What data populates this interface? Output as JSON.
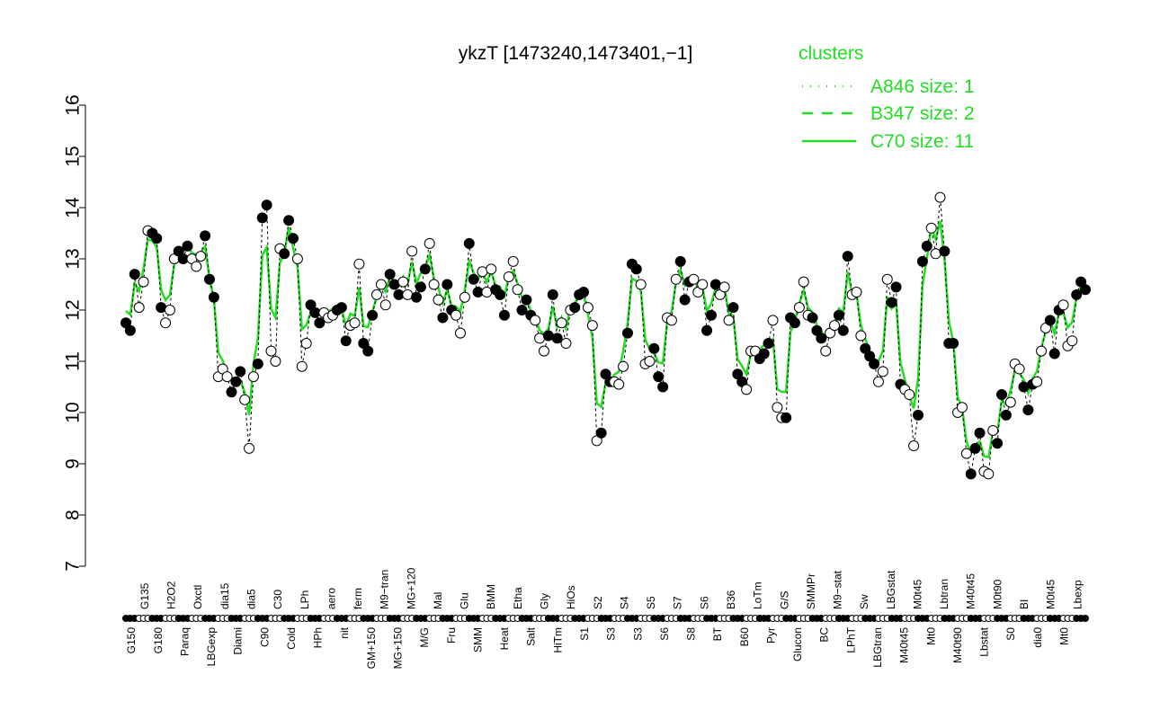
{
  "chart_data": {
    "type": "line",
    "title": "ykzT [1473240,1473401,−1]",
    "xlabel": "",
    "ylabel": "",
    "ylim": [
      7,
      16
    ],
    "yticks": [
      "7",
      "8",
      "9",
      "10",
      "11",
      "12",
      "13",
      "14",
      "15",
      "16"
    ],
    "grid": false,
    "legend": {
      "title": "clusters",
      "placement": "top-right",
      "entries": [
        {
          "label": "A846 size: 1",
          "style": "dotted"
        },
        {
          "label": "B347 size: 2",
          "style": "dashed"
        },
        {
          "label": "C70 size: 11",
          "style": "solid"
        }
      ]
    },
    "colors": {
      "cluster": "#22dd22",
      "points": "#000000"
    },
    "xtick_labels_bottom": [
      "G150",
      "G180",
      "Paraq",
      "LBGexp",
      "Diami",
      "C90",
      "Cold",
      "HPh",
      "nit",
      "GM+150",
      "MG+150",
      "M/G",
      "Fru",
      "SMM",
      "Heat",
      "Salt",
      "HiTm",
      "S1",
      "S3",
      "S3",
      "S6",
      "S8",
      "BT",
      "B60",
      "Pyr",
      "Glucon",
      "BC",
      "LPhT",
      "LBGtran",
      "M40t45",
      "Mt0",
      "M40t90",
      "Lbstat",
      "S0",
      "dia0",
      "Mt0"
    ],
    "xtick_labels_top": [
      "G135",
      "H2O2",
      "Oxctl",
      "dia15",
      "dia5",
      "C30",
      "LPh",
      "aero",
      "ferm",
      "M9−tran",
      "MG+120",
      "Mal",
      "Glu",
      "BMM",
      "Etha",
      "Gly",
      "HiOs",
      "S2",
      "S4",
      "S5",
      "S7",
      "S6",
      "B36",
      "LoTm",
      "G/S",
      "SMMPr",
      "M9−stat",
      "Sw",
      "LBGstat",
      "M0t45",
      "Lbtran",
      "M40t45",
      "M0t90",
      "BI",
      "M0t45",
      "Lbexp"
    ],
    "values": [
      11.75,
      11.6,
      12.7,
      12.05,
      12.55,
      13.55,
      13.5,
      13.4,
      12.05,
      11.75,
      12.0,
      13.0,
      13.15,
      13.0,
      13.25,
      13.0,
      12.85,
      13.05,
      13.45,
      12.6,
      12.25,
      10.7,
      10.85,
      10.7,
      10.4,
      10.6,
      10.8,
      10.25,
      9.3,
      10.7,
      10.95,
      13.8,
      14.05,
      11.2,
      11.0,
      13.2,
      13.1,
      13.75,
      13.4,
      13.0,
      10.9,
      11.35,
      12.1,
      11.95,
      11.75,
      11.95,
      11.85,
      11.9,
      12.0,
      12.05,
      11.4,
      11.7,
      11.75,
      12.9,
      11.35,
      11.2,
      11.9,
      12.3,
      12.5,
      12.1,
      12.7,
      12.5,
      12.3,
      12.55,
      12.3,
      13.15,
      12.25,
      12.45,
      12.8,
      13.3,
      12.5,
      12.2,
      11.85,
      12.5,
      12.0,
      11.9,
      11.55,
      12.25,
      13.3,
      12.6,
      12.35,
      12.75,
      12.35,
      12.8,
      12.4,
      12.3,
      11.9,
      12.65,
      12.95,
      12.4,
      12.0,
      12.2,
      11.9,
      11.8,
      11.45,
      11.2,
      11.5,
      12.3,
      11.45,
      11.75,
      11.35,
      12.0,
      12.05,
      12.3,
      12.35,
      12.05,
      11.7,
      9.45,
      9.6,
      10.75,
      10.6,
      10.6,
      10.55,
      10.9,
      11.55,
      12.9,
      12.8,
      12.5,
      10.95,
      11.0,
      11.25,
      10.7,
      10.5,
      11.85,
      11.8,
      12.6,
      12.95,
      12.2,
      12.55,
      12.6,
      12.35,
      12.5,
      11.6,
      11.9,
      12.5,
      12.3,
      12.45,
      11.8,
      12.05,
      10.75,
      10.6,
      10.45,
      11.2,
      11.2,
      11.05,
      11.15,
      11.35,
      11.8,
      10.1,
      9.9,
      9.9,
      11.85,
      11.75,
      12.05,
      12.55,
      11.9,
      11.85,
      11.6,
      11.45,
      11.2,
      11.55,
      11.7,
      11.9,
      11.6,
      13.05,
      12.3,
      12.35,
      11.5,
      11.25,
      11.1,
      10.95,
      10.6,
      10.8,
      12.6,
      12.15,
      12.45,
      10.55,
      10.45,
      10.35,
      9.35,
      9.95,
      12.95,
      13.25,
      13.6,
      13.1,
      14.2,
      13.15,
      11.35,
      11.35,
      10.0,
      10.1,
      9.2,
      8.8,
      9.3,
      9.6,
      8.85,
      8.8,
      9.65,
      9.4,
      10.35,
      9.95,
      10.2,
      10.95,
      10.85,
      10.5,
      10.05,
      10.55,
      10.6,
      11.2,
      11.65,
      11.8,
      11.15,
      12.0,
      12.1,
      11.3,
      11.4,
      12.3,
      12.55,
      12.4
    ]
  }
}
